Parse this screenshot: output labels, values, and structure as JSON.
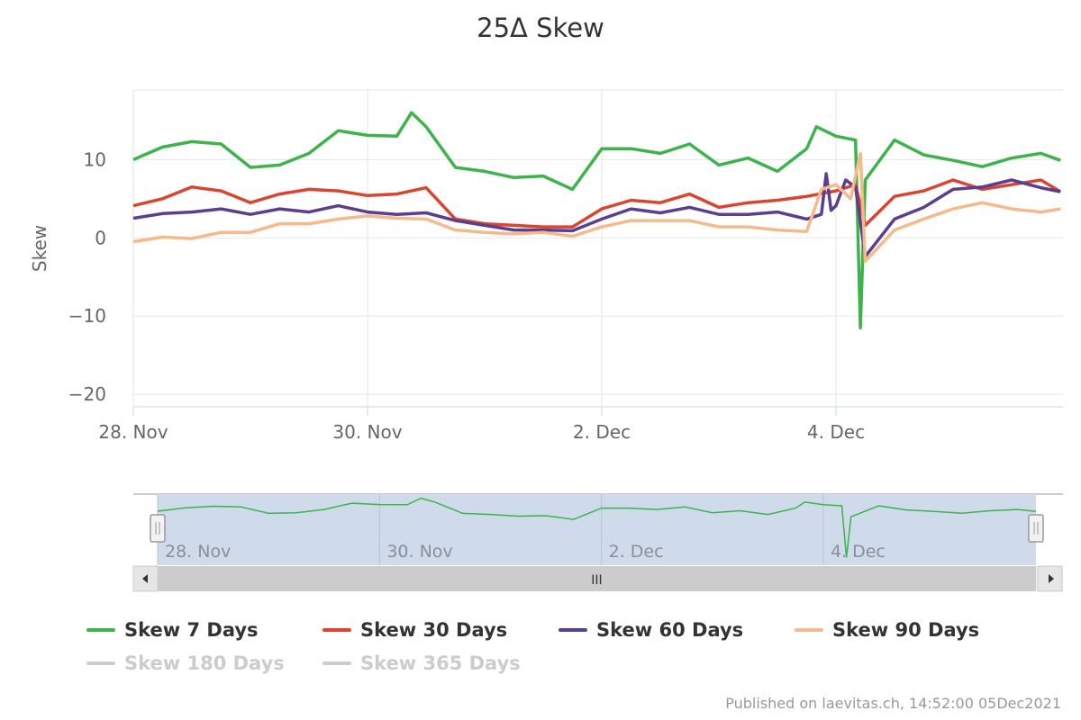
{
  "chart_data": {
    "type": "line",
    "title": "25Δ Skew",
    "ylabel": "Skew",
    "xlabel": "",
    "ylim": [
      -21.6,
      18.9
    ],
    "yticks": [
      10,
      0,
      -10,
      -20
    ],
    "ytick_labels": [
      "10",
      "0",
      "−10",
      "−20"
    ],
    "xlim": [
      "2021-11-28 00:00",
      "2021-12-05 22:00"
    ],
    "xticks": [
      "2021-11-28 00:00",
      "2021-11-30 00:00",
      "2021-12-02 00:00",
      "2021-12-04 00:00"
    ],
    "xtick_labels": [
      "28. Nov",
      "30. Nov",
      "2. Dec",
      "4. Dec"
    ],
    "grid": true,
    "legend_position": "bottom",
    "series": [
      {
        "name": "Skew 7 Days",
        "color": "#3cb44b",
        "visible": true,
        "points": [
          [
            "2021-11-28 00:00",
            10.0
          ],
          [
            "2021-11-28 06:00",
            11.6
          ],
          [
            "2021-11-28 12:00",
            12.3
          ],
          [
            "2021-11-28 18:00",
            12.0
          ],
          [
            "2021-11-29 00:00",
            9.0
          ],
          [
            "2021-11-29 06:00",
            9.3
          ],
          [
            "2021-11-29 12:00",
            10.8
          ],
          [
            "2021-11-29 18:00",
            13.7
          ],
          [
            "2021-11-30 00:00",
            13.1
          ],
          [
            "2021-11-30 06:00",
            13.0
          ],
          [
            "2021-11-30 09:00",
            16.0
          ],
          [
            "2021-11-30 12:00",
            14.2
          ],
          [
            "2021-11-30 18:00",
            9.0
          ],
          [
            "2021-12-01 00:00",
            8.5
          ],
          [
            "2021-12-01 06:00",
            7.7
          ],
          [
            "2021-12-01 12:00",
            7.9
          ],
          [
            "2021-12-01 18:00",
            6.2
          ],
          [
            "2021-12-02 00:00",
            11.4
          ],
          [
            "2021-12-02 06:00",
            11.4
          ],
          [
            "2021-12-02 12:00",
            10.8
          ],
          [
            "2021-12-02 18:00",
            12.0
          ],
          [
            "2021-12-03 00:00",
            9.3
          ],
          [
            "2021-12-03 06:00",
            10.2
          ],
          [
            "2021-12-03 12:00",
            8.5
          ],
          [
            "2021-12-03 18:00",
            11.4
          ],
          [
            "2021-12-03 20:00",
            14.2
          ],
          [
            "2021-12-04 00:00",
            13.0
          ],
          [
            "2021-12-04 04:00",
            12.5
          ],
          [
            "2021-12-04 05:00",
            -11.5
          ],
          [
            "2021-12-04 06:00",
            7.4
          ],
          [
            "2021-12-04 12:00",
            12.5
          ],
          [
            "2021-12-04 18:00",
            10.6
          ],
          [
            "2021-12-05 00:00",
            9.9
          ],
          [
            "2021-12-05 06:00",
            9.1
          ],
          [
            "2021-12-05 12:00",
            10.2
          ],
          [
            "2021-12-05 18:00",
            10.8
          ],
          [
            "2021-12-05 22:00",
            9.9
          ]
        ]
      },
      {
        "name": "Skew 30 Days",
        "color": "#d9452f",
        "visible": true,
        "points": [
          [
            "2021-11-28 00:00",
            4.1
          ],
          [
            "2021-11-28 06:00",
            5.0
          ],
          [
            "2021-11-28 12:00",
            6.5
          ],
          [
            "2021-11-28 18:00",
            6.0
          ],
          [
            "2021-11-29 00:00",
            4.5
          ],
          [
            "2021-11-29 06:00",
            5.6
          ],
          [
            "2021-11-29 12:00",
            6.2
          ],
          [
            "2021-11-29 18:00",
            6.0
          ],
          [
            "2021-11-30 00:00",
            5.4
          ],
          [
            "2021-11-30 06:00",
            5.6
          ],
          [
            "2021-11-30 12:00",
            6.4
          ],
          [
            "2021-11-30 18:00",
            2.4
          ],
          [
            "2021-12-01 00:00",
            1.8
          ],
          [
            "2021-12-01 06:00",
            1.6
          ],
          [
            "2021-12-01 12:00",
            1.4
          ],
          [
            "2021-12-01 18:00",
            1.4
          ],
          [
            "2021-12-02 00:00",
            3.7
          ],
          [
            "2021-12-02 06:00",
            4.8
          ],
          [
            "2021-12-02 12:00",
            4.5
          ],
          [
            "2021-12-02 18:00",
            5.6
          ],
          [
            "2021-12-03 00:00",
            3.9
          ],
          [
            "2021-12-03 06:00",
            4.5
          ],
          [
            "2021-12-03 12:00",
            4.8
          ],
          [
            "2021-12-03 18:00",
            5.3
          ],
          [
            "2021-12-04 00:00",
            6.0
          ],
          [
            "2021-12-04 04:00",
            6.8
          ],
          [
            "2021-12-04 06:00",
            1.6
          ],
          [
            "2021-12-04 12:00",
            5.3
          ],
          [
            "2021-12-04 18:00",
            6.0
          ],
          [
            "2021-12-05 00:00",
            7.4
          ],
          [
            "2021-12-05 06:00",
            6.2
          ],
          [
            "2021-12-05 12:00",
            6.8
          ],
          [
            "2021-12-05 18:00",
            7.4
          ],
          [
            "2021-12-05 22:00",
            5.9
          ]
        ]
      },
      {
        "name": "Skew 60 Days",
        "color": "#5b3f8f",
        "visible": true,
        "points": [
          [
            "2021-11-28 00:00",
            2.5
          ],
          [
            "2021-11-28 06:00",
            3.1
          ],
          [
            "2021-11-28 12:00",
            3.3
          ],
          [
            "2021-11-28 18:00",
            3.7
          ],
          [
            "2021-11-29 00:00",
            3.0
          ],
          [
            "2021-11-29 06:00",
            3.7
          ],
          [
            "2021-11-29 12:00",
            3.3
          ],
          [
            "2021-11-29 18:00",
            4.1
          ],
          [
            "2021-11-30 00:00",
            3.3
          ],
          [
            "2021-11-30 06:00",
            3.0
          ],
          [
            "2021-11-30 12:00",
            3.2
          ],
          [
            "2021-11-30 18:00",
            2.2
          ],
          [
            "2021-12-01 00:00",
            1.6
          ],
          [
            "2021-12-01 06:00",
            1.0
          ],
          [
            "2021-12-01 12:00",
            1.0
          ],
          [
            "2021-12-01 18:00",
            0.9
          ],
          [
            "2021-12-02 00:00",
            2.4
          ],
          [
            "2021-12-02 06:00",
            3.7
          ],
          [
            "2021-12-02 12:00",
            3.2
          ],
          [
            "2021-12-02 18:00",
            3.9
          ],
          [
            "2021-12-03 00:00",
            3.0
          ],
          [
            "2021-12-03 06:00",
            3.0
          ],
          [
            "2021-12-03 12:00",
            3.3
          ],
          [
            "2021-12-03 18:00",
            2.4
          ],
          [
            "2021-12-03 21:00",
            3.0
          ],
          [
            "2021-12-03 22:00",
            8.2
          ],
          [
            "2021-12-03 23:00",
            3.5
          ],
          [
            "2021-12-04 00:00",
            4.1
          ],
          [
            "2021-12-04 02:00",
            7.4
          ],
          [
            "2021-12-04 04:00",
            6.5
          ],
          [
            "2021-12-04 06:00",
            -2.4
          ],
          [
            "2021-12-04 12:00",
            2.4
          ],
          [
            "2021-12-04 18:00",
            3.9
          ],
          [
            "2021-12-05 00:00",
            6.2
          ],
          [
            "2021-12-05 06:00",
            6.5
          ],
          [
            "2021-12-05 12:00",
            7.4
          ],
          [
            "2021-12-05 18:00",
            6.4
          ],
          [
            "2021-12-05 22:00",
            5.9
          ]
        ]
      },
      {
        "name": "Skew 90 Days",
        "color": "#f5b98a",
        "visible": true,
        "points": [
          [
            "2021-11-28 00:00",
            -0.5
          ],
          [
            "2021-11-28 06:00",
            0.1
          ],
          [
            "2021-11-28 12:00",
            -0.1
          ],
          [
            "2021-11-28 18:00",
            0.7
          ],
          [
            "2021-11-29 00:00",
            0.7
          ],
          [
            "2021-11-29 06:00",
            1.8
          ],
          [
            "2021-11-29 12:00",
            1.8
          ],
          [
            "2021-11-29 18:00",
            2.4
          ],
          [
            "2021-11-30 00:00",
            2.8
          ],
          [
            "2021-11-30 06:00",
            2.5
          ],
          [
            "2021-11-30 12:00",
            2.4
          ],
          [
            "2021-11-30 18:00",
            1.0
          ],
          [
            "2021-12-01 00:00",
            0.7
          ],
          [
            "2021-12-01 06:00",
            0.5
          ],
          [
            "2021-12-01 12:00",
            0.7
          ],
          [
            "2021-12-01 18:00",
            0.2
          ],
          [
            "2021-12-02 00:00",
            1.4
          ],
          [
            "2021-12-02 06:00",
            2.2
          ],
          [
            "2021-12-02 12:00",
            2.2
          ],
          [
            "2021-12-02 18:00",
            2.2
          ],
          [
            "2021-12-03 00:00",
            1.4
          ],
          [
            "2021-12-03 06:00",
            1.4
          ],
          [
            "2021-12-03 12:00",
            1.0
          ],
          [
            "2021-12-03 18:00",
            0.8
          ],
          [
            "2021-12-03 21:00",
            6.2
          ],
          [
            "2021-12-04 00:00",
            6.8
          ],
          [
            "2021-12-04 03:00",
            5.0
          ],
          [
            "2021-12-04 05:00",
            10.8
          ],
          [
            "2021-12-04 06:00",
            -3.0
          ],
          [
            "2021-12-04 12:00",
            1.0
          ],
          [
            "2021-12-04 18:00",
            2.4
          ],
          [
            "2021-12-05 00:00",
            3.7
          ],
          [
            "2021-12-05 06:00",
            4.5
          ],
          [
            "2021-12-05 12:00",
            3.7
          ],
          [
            "2021-12-05 18:00",
            3.3
          ],
          [
            "2021-12-05 22:00",
            3.7
          ]
        ]
      },
      {
        "name": "Skew 180 Days",
        "color": "#cccccc",
        "visible": false,
        "points": []
      },
      {
        "name": "Skew 365 Days",
        "color": "#cccccc",
        "visible": false,
        "points": []
      }
    ]
  },
  "navigator": {
    "xtick_labels": [
      "28. Nov",
      "30. Nov",
      "2. Dec",
      "4. Dec"
    ],
    "series": "Skew 7 Days",
    "handle_icon": "grip-lines-icon",
    "scroll_left_icon": "triangle-left-icon",
    "scroll_right_icon": "triangle-right-icon",
    "scroll_grip_icon": "grip-lines-icon",
    "scroll_grip": "III"
  },
  "credit": "Published on laevitas.ch, 14:52:00 05Dec2021"
}
